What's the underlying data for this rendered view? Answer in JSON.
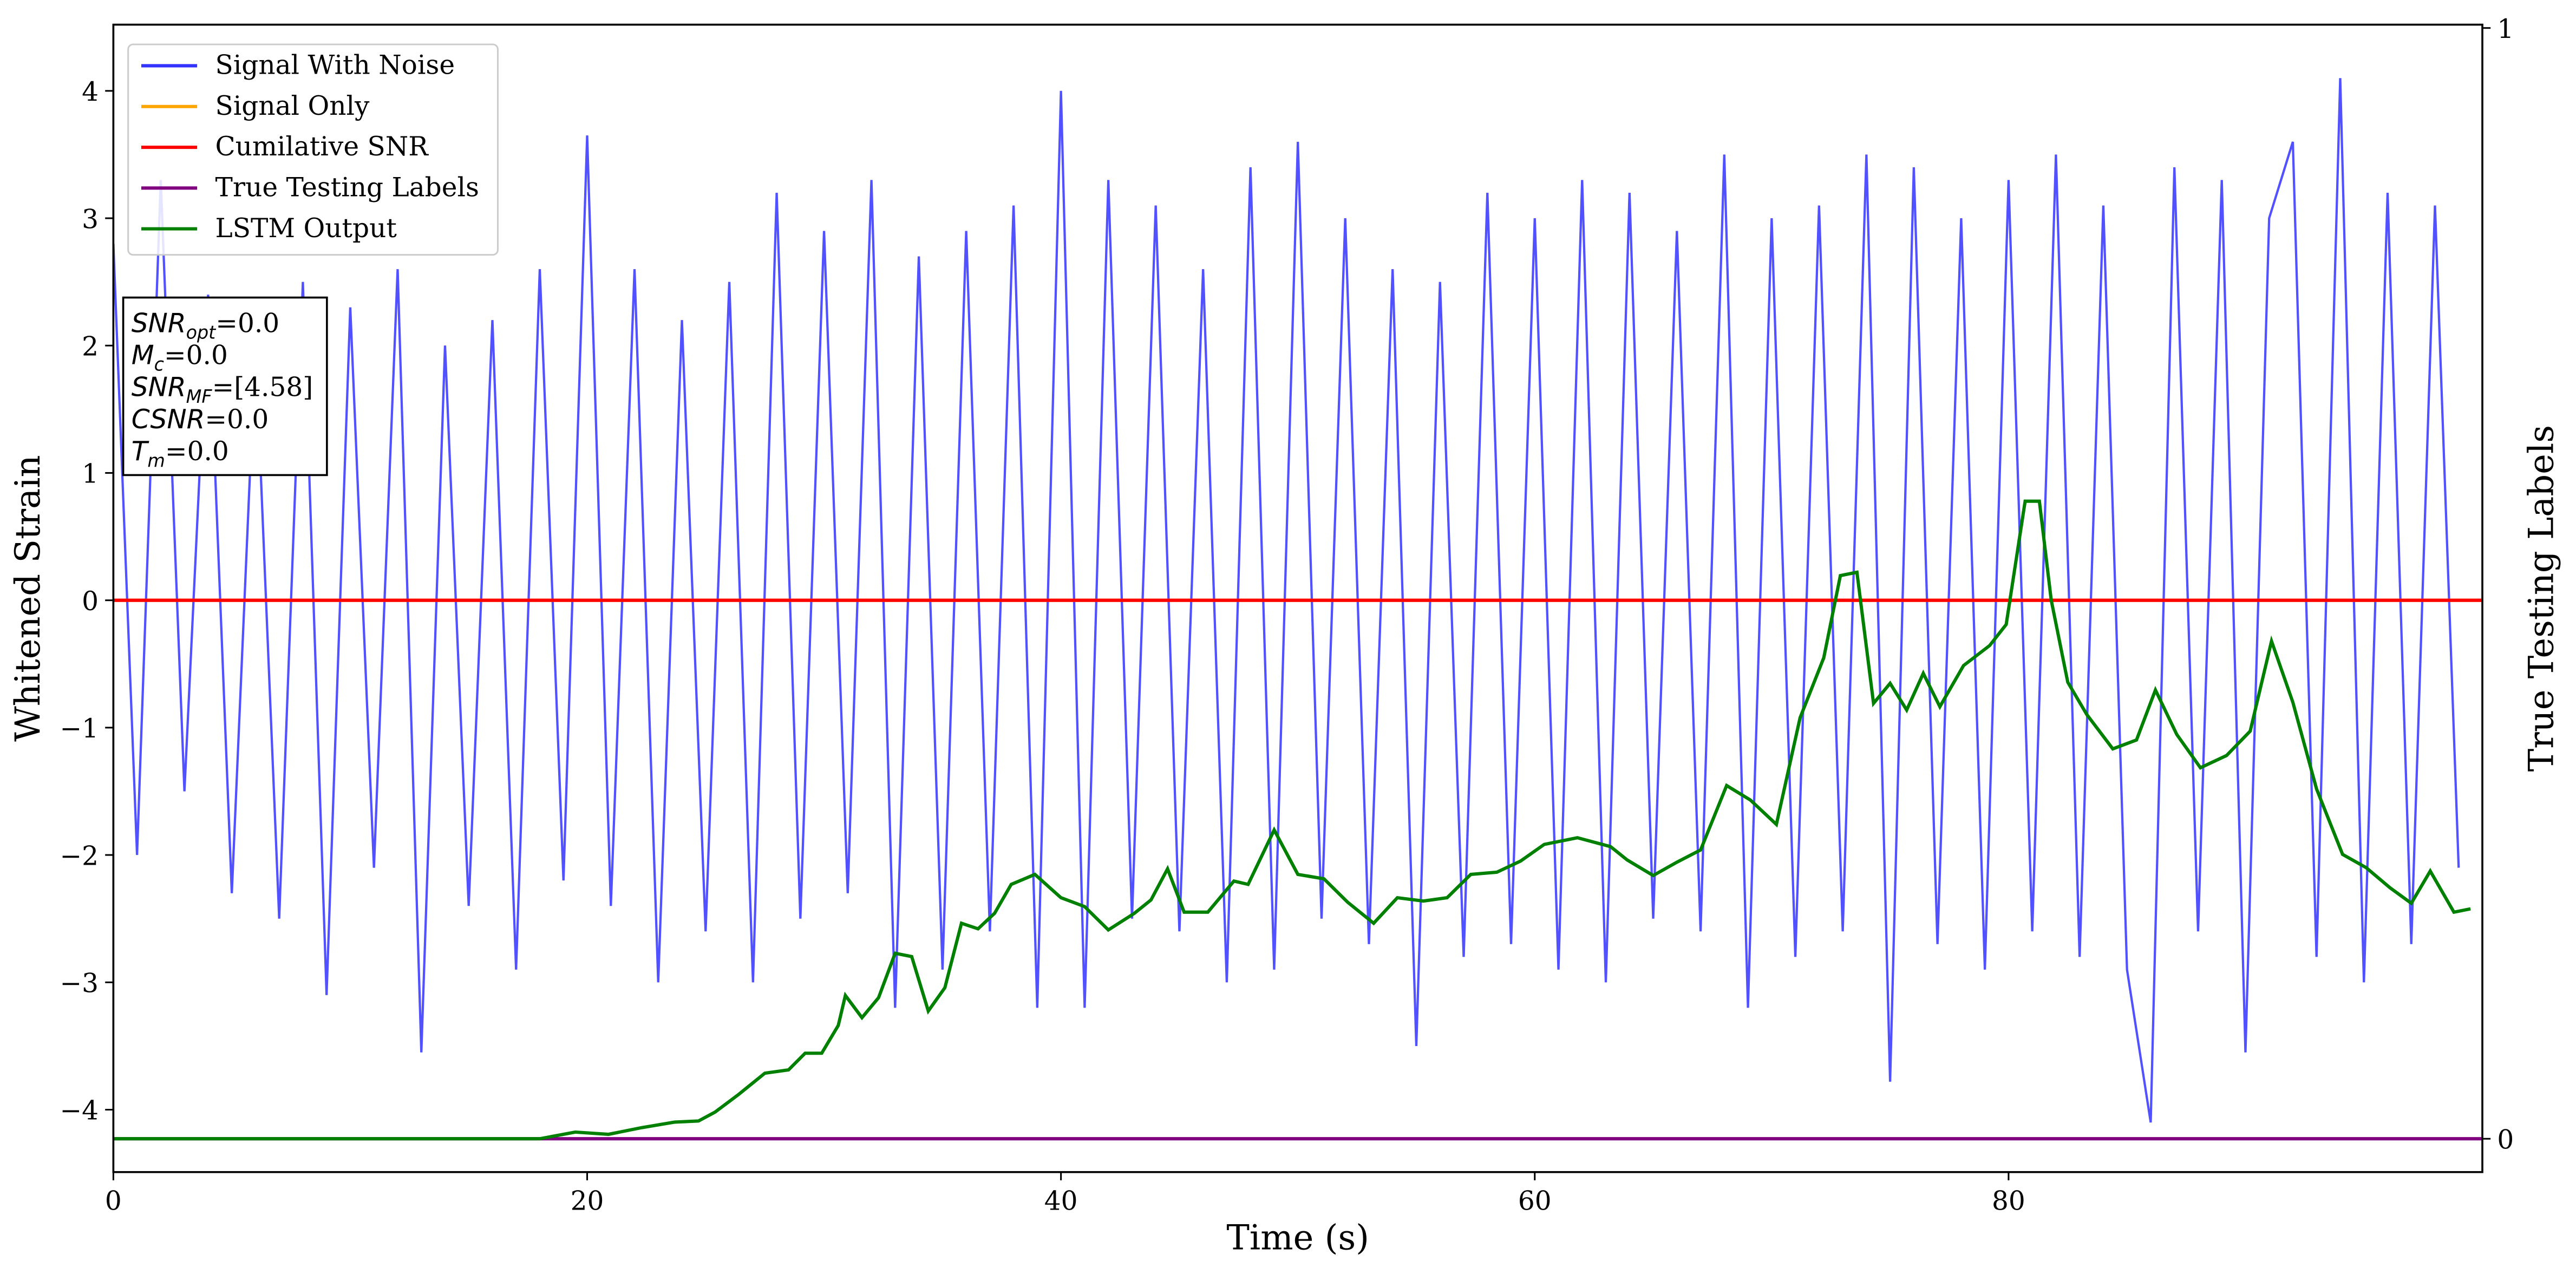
{
  "chart_data": {
    "type": "line",
    "xlabel": "Time (s)",
    "ylabel": "Whitened Strain",
    "y2label": "True Testing Labels",
    "xlim": [
      0,
      100
    ],
    "ylim": [
      -4.49,
      4.52
    ],
    "y2lim": [
      -0.03,
      1.003
    ],
    "xticks": [
      0,
      20,
      40,
      60,
      80
    ],
    "yticks": [
      {
        "value": -4,
        "label": "−4"
      },
      {
        "value": -3,
        "label": "−3"
      },
      {
        "value": -2,
        "label": "−2"
      },
      {
        "value": -1,
        "label": "−1"
      },
      0,
      1,
      2,
      3,
      4
    ],
    "y2ticks": [
      0,
      1
    ],
    "legend": "upper left",
    "series": [
      {
        "name": "Signal With Noise",
        "color": "#3333ff",
        "axis": "y",
        "x": [
          0,
          1,
          2,
          3,
          4,
          5,
          6,
          7,
          8,
          9,
          10,
          11,
          12,
          13,
          14,
          15,
          16,
          17,
          18,
          19,
          20,
          21,
          22,
          23,
          24,
          25,
          26,
          27,
          28,
          29,
          30,
          31,
          32,
          33,
          34,
          35,
          36,
          37,
          38,
          39,
          40,
          41,
          42,
          43,
          44,
          45,
          46,
          47,
          48,
          49,
          50,
          51,
          52,
          53,
          54,
          55,
          56,
          57,
          58,
          59,
          60,
          61,
          62,
          63,
          64,
          65,
          66,
          67,
          68,
          69,
          70,
          71,
          72,
          73,
          74,
          75,
          76,
          77,
          78,
          79,
          80,
          81,
          82,
          83,
          84,
          85,
          86,
          87,
          88,
          89,
          90,
          91,
          92,
          93,
          94,
          95,
          96,
          97,
          98,
          99
        ],
        "values": [
          2.8,
          -2.0,
          3.3,
          -1.5,
          2.4,
          -2.3,
          2.0,
          -2.5,
          2.5,
          -3.1,
          2.3,
          -2.1,
          2.6,
          -3.55,
          2.0,
          -2.4,
          2.2,
          -2.9,
          2.6,
          -2.2,
          3.65,
          -2.4,
          2.6,
          -3.0,
          2.2,
          -2.6,
          2.5,
          -3.0,
          3.2,
          -2.5,
          2.9,
          -2.3,
          3.3,
          -3.2,
          2.7,
          -2.9,
          2.9,
          -2.6,
          3.1,
          -3.2,
          4.0,
          -3.2,
          3.3,
          -2.5,
          3.1,
          -2.6,
          2.6,
          -3.0,
          3.4,
          -2.9,
          3.6,
          -2.5,
          3.0,
          -2.7,
          2.6,
          -3.5,
          2.5,
          -2.8,
          3.2,
          -2.7,
          3.0,
          -2.9,
          3.3,
          -3.0,
          3.2,
          -2.5,
          2.9,
          -2.6,
          3.5,
          -3.2,
          3.0,
          -2.8,
          3.1,
          -2.6,
          3.5,
          -3.78,
          3.4,
          -2.7,
          3.0,
          -2.9,
          3.3,
          -2.6,
          3.5,
          -2.8,
          3.1,
          -2.9,
          -4.1,
          3.4,
          -2.6,
          3.3,
          -3.55,
          3.0,
          3.6,
          -2.8,
          4.1,
          -3.0,
          3.2,
          -2.7,
          3.1,
          -2.1
        ]
      },
      {
        "name": "Signal Only",
        "color": "#ffa500",
        "axis": "y",
        "x": [
          0,
          100
        ],
        "values": [
          0,
          0
        ]
      },
      {
        "name": "Cumilative SNR",
        "color": "#ff0000",
        "axis": "y",
        "x": [
          0,
          100
        ],
        "values": [
          0,
          0
        ]
      },
      {
        "name": "True Testing Labels",
        "color": "#800080",
        "axis": "y2",
        "x": [
          0,
          100
        ],
        "values": [
          0,
          0
        ]
      },
      {
        "name": "LSTM Output",
        "color": "#008000",
        "axis": "y2",
        "x": [
          0,
          18,
          19.5,
          20.9,
          22.3,
          23.7,
          24.7,
          25.4,
          26.4,
          27.5,
          28.5,
          29.2,
          29.9,
          30.6,
          30.9,
          31.6,
          32.3,
          33.0,
          33.7,
          34.4,
          35.1,
          35.8,
          36.5,
          37.2,
          37.9,
          38.9,
          40.0,
          41.0,
          42.0,
          43.1,
          43.8,
          44.5,
          45.2,
          46.2,
          47.3,
          47.9,
          49.0,
          50.0,
          51.1,
          52.1,
          53.2,
          54.2,
          55.3,
          56.3,
          57.3,
          58.4,
          59.4,
          60.4,
          61.8,
          63.2,
          63.9,
          65.0,
          66.0,
          67.0,
          68.1,
          69.1,
          70.2,
          71.2,
          72.2,
          72.9,
          73.6,
          74.3,
          75.0,
          75.7,
          76.4,
          77.1,
          78.1,
          79.2,
          79.9,
          80.7,
          81.3,
          81.8,
          82.5,
          83.3,
          84.4,
          85.4,
          86.2,
          87.1,
          88.1,
          89.2,
          90.2,
          91.1,
          92.0,
          93.0,
          94.1,
          95.1,
          96.1,
          97.0,
          97.8,
          98.8,
          99.5
        ],
        "values": [
          0,
          0,
          0.006,
          0.004,
          0.01,
          0.015,
          0.016,
          0.024,
          0.04,
          0.059,
          0.062,
          0.077,
          0.077,
          0.102,
          0.129,
          0.109,
          0.127,
          0.167,
          0.164,
          0.115,
          0.136,
          0.194,
          0.189,
          0.203,
          0.229,
          0.238,
          0.217,
          0.209,
          0.188,
          0.203,
          0.215,
          0.243,
          0.204,
          0.204,
          0.232,
          0.229,
          0.278,
          0.238,
          0.234,
          0.213,
          0.194,
          0.217,
          0.214,
          0.217,
          0.238,
          0.24,
          0.25,
          0.265,
          0.271,
          0.263,
          0.251,
          0.237,
          0.249,
          0.26,
          0.318,
          0.305,
          0.283,
          0.379,
          0.433,
          0.507,
          0.51,
          0.392,
          0.41,
          0.386,
          0.419,
          0.389,
          0.426,
          0.444,
          0.463,
          0.574,
          0.574,
          0.485,
          0.411,
          0.382,
          0.351,
          0.359,
          0.404,
          0.364,
          0.334,
          0.345,
          0.367,
          0.448,
          0.393,
          0.315,
          0.256,
          0.244,
          0.226,
          0.212,
          0.241,
          0.204,
          0.207
        ]
      }
    ],
    "annotation": [
      {
        "main": "SNR",
        "sub": "opt",
        "rest": "=0.0"
      },
      {
        "main": "M",
        "sub": "c",
        "rest": "=0.0"
      },
      {
        "main": "SNR",
        "sub": "MF",
        "rest": "=[4.58]"
      },
      {
        "main": "CSNR",
        "rest": "=0.0"
      },
      {
        "main": "T",
        "sub": "m",
        "rest": "=0.0"
      }
    ]
  }
}
